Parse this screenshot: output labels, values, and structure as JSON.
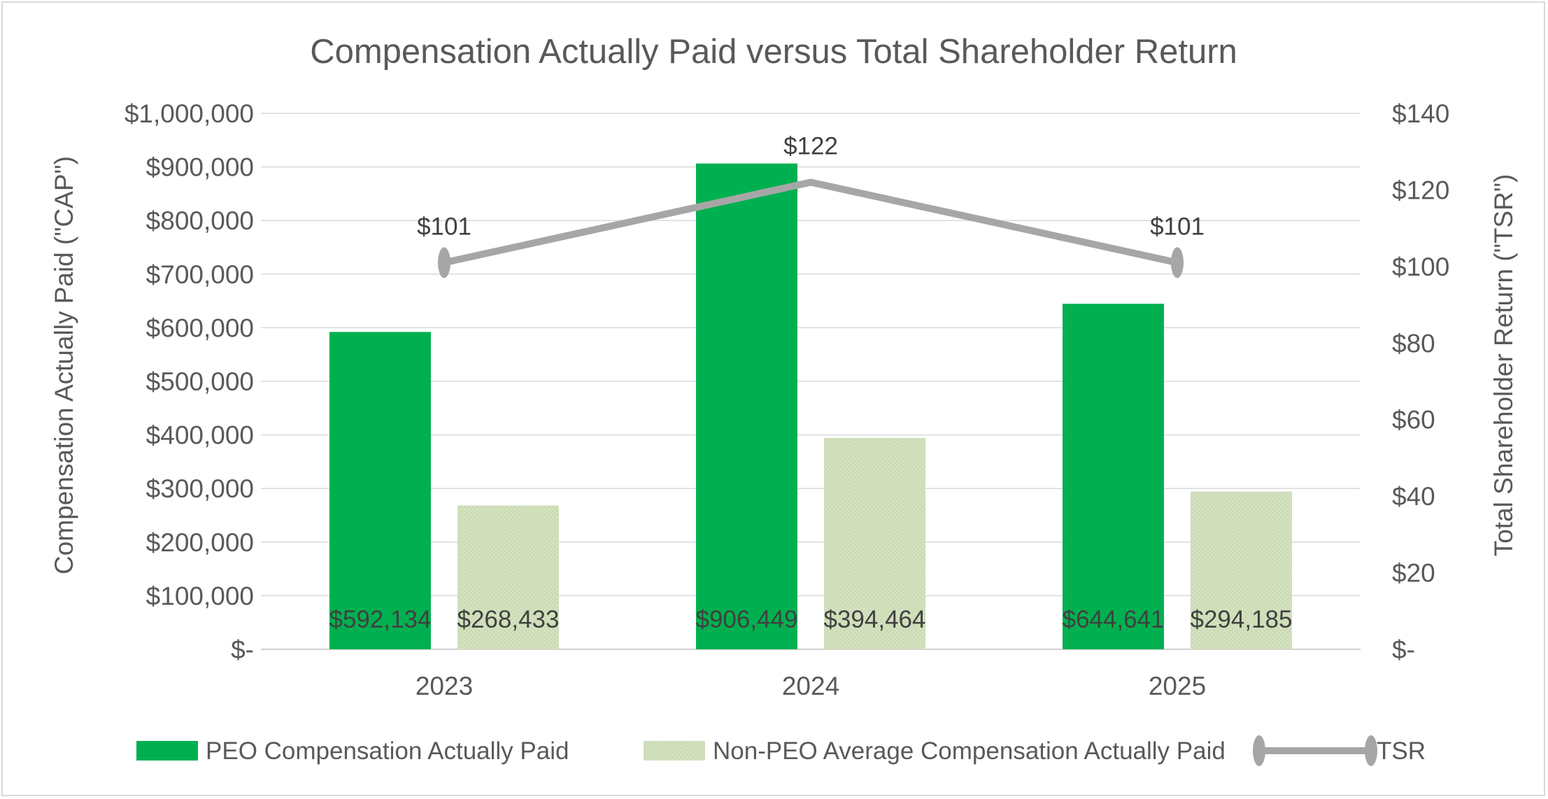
{
  "chart_data": {
    "type": "bar",
    "title": "Compensation Actually Paid versus Total Shareholder Return",
    "categories": [
      "2023",
      "2024",
      "2025"
    ],
    "series": [
      {
        "name": "PEO Compensation Actually Paid",
        "kind": "bar",
        "axis": "left",
        "color": "#00b050",
        "values": [
          592134,
          906449,
          644641
        ],
        "labels": [
          "$592,134",
          "$906,449",
          "$644,641"
        ]
      },
      {
        "name": "Non-PEO Average Compensation Actually Paid",
        "kind": "bar",
        "axis": "left",
        "color": "#d3e1be",
        "values": [
          268433,
          394464,
          294185
        ],
        "labels": [
          "$268,433",
          "$394,464",
          "$294,185"
        ]
      },
      {
        "name": "TSR",
        "kind": "line",
        "axis": "right",
        "color": "#a6a6a6",
        "values": [
          101,
          122,
          101
        ],
        "labels": [
          "$101",
          "$122",
          "$101"
        ]
      }
    ],
    "left_axis": {
      "label": "Compensation Actually Paid (\"CAP\")",
      "range": [
        0,
        1000000
      ],
      "ticks": [
        0,
        100000,
        200000,
        300000,
        400000,
        500000,
        600000,
        700000,
        800000,
        900000,
        1000000
      ],
      "tick_labels": [
        "$-",
        "$100,000",
        "$200,000",
        "$300,000",
        "$400,000",
        "$500,000",
        "$600,000",
        "$700,000",
        "$800,000",
        "$900,000",
        "$1,000,000"
      ]
    },
    "right_axis": {
      "label": "Total Shareholder Return (\"TSR\")",
      "range": [
        0,
        140
      ],
      "ticks": [
        0,
        20,
        40,
        60,
        80,
        100,
        120,
        140
      ],
      "tick_labels": [
        "$-",
        "$20",
        "$40",
        "$60",
        "$80",
        "$100",
        "$120",
        "$140"
      ]
    },
    "grid": true,
    "gridline_color": "#d9d9d9",
    "text_color": "#595959",
    "legend_position": "bottom"
  }
}
